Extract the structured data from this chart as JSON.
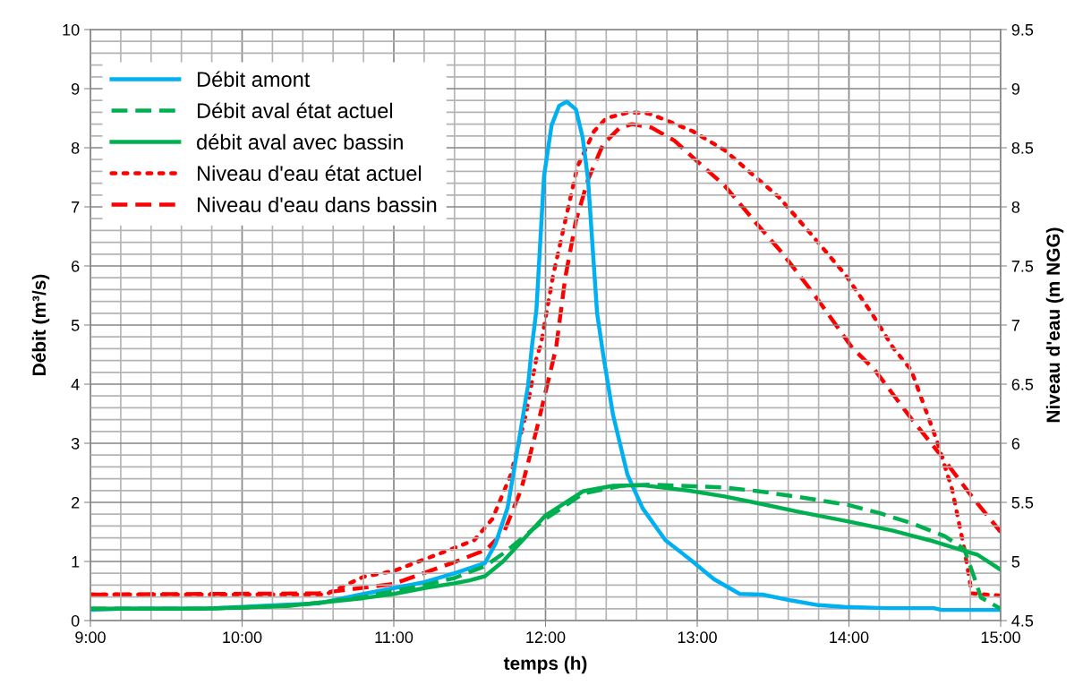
{
  "chart_data": {
    "type": "line",
    "xlabel": "temps (h)",
    "ylabel": "Débit (m³/s)",
    "y2label": "Niveau d'eau (m NGG)",
    "xlim": [
      9,
      15
    ],
    "ylim": [
      0,
      10
    ],
    "y2lim": [
      4.5,
      9.5
    ],
    "xticks": [
      {
        "value": 9,
        "label": "9:00"
      },
      {
        "value": 9.2,
        "label": null
      },
      {
        "value": 9.4,
        "label": null
      },
      {
        "value": 9.6,
        "label": null
      },
      {
        "value": 9.8,
        "label": null
      },
      {
        "value": 10,
        "label": "10:00"
      },
      {
        "value": 10.2,
        "label": null
      },
      {
        "value": 10.4,
        "label": null
      },
      {
        "value": 10.6,
        "label": null
      },
      {
        "value": 10.8,
        "label": null
      },
      {
        "value": 11,
        "label": "11:00"
      },
      {
        "value": 11.2,
        "label": null
      },
      {
        "value": 11.4,
        "label": null
      },
      {
        "value": 11.6,
        "label": null
      },
      {
        "value": 11.8,
        "label": null
      },
      {
        "value": 12,
        "label": "12:00"
      },
      {
        "value": 12.2,
        "label": null
      },
      {
        "value": 12.4,
        "label": null
      },
      {
        "value": 12.6,
        "label": null
      },
      {
        "value": 12.8,
        "label": null
      },
      {
        "value": 13,
        "label": "13:00"
      },
      {
        "value": 13.2,
        "label": null
      },
      {
        "value": 13.4,
        "label": null
      },
      {
        "value": 13.6,
        "label": null
      },
      {
        "value": 13.8,
        "label": null
      },
      {
        "value": 14,
        "label": "14:00"
      },
      {
        "value": 14.2,
        "label": null
      },
      {
        "value": 14.4,
        "label": null
      },
      {
        "value": 14.6,
        "label": null
      },
      {
        "value": 14.8,
        "label": null
      },
      {
        "value": 15,
        "label": "15:00"
      }
    ],
    "yticks": [
      0,
      {
        "value": 0.2,
        "label": null
      },
      {
        "value": 0.4,
        "label": null
      },
      {
        "value": 0.6,
        "label": null
      },
      {
        "value": 0.8,
        "label": null
      },
      1,
      {
        "value": 1.2,
        "label": null
      },
      {
        "value": 1.4,
        "label": null
      },
      {
        "value": 1.6,
        "label": null
      },
      {
        "value": 1.8,
        "label": null
      },
      2,
      {
        "value": 2.2,
        "label": null
      },
      {
        "value": 2.4,
        "label": null
      },
      {
        "value": 2.6,
        "label": null
      },
      {
        "value": 2.8,
        "label": null
      },
      3,
      {
        "value": 3.2,
        "label": null
      },
      {
        "value": 3.4,
        "label": null
      },
      {
        "value": 3.6,
        "label": null
      },
      {
        "value": 3.8,
        "label": null
      },
      4,
      {
        "value": 4.2,
        "label": null
      },
      {
        "value": 4.4,
        "label": null
      },
      {
        "value": 4.6,
        "label": null
      },
      {
        "value": 4.8,
        "label": null
      },
      5,
      {
        "value": 5.2,
        "label": null
      },
      {
        "value": 5.4,
        "label": null
      },
      {
        "value": 5.6,
        "label": null
      },
      {
        "value": 5.8,
        "label": null
      },
      6,
      {
        "value": 6.2,
        "label": null
      },
      {
        "value": 6.4,
        "label": null
      },
      {
        "value": 6.6,
        "label": null
      },
      {
        "value": 6.8,
        "label": null
      },
      7,
      {
        "value": 7.2,
        "label": null
      },
      {
        "value": 7.4,
        "label": null
      },
      {
        "value": 7.6,
        "label": null
      },
      {
        "value": 7.8,
        "label": null
      },
      8,
      {
        "value": 8.2,
        "label": null
      },
      {
        "value": 8.4,
        "label": null
      },
      {
        "value": 8.6,
        "label": null
      },
      {
        "value": 8.8,
        "label": null
      },
      9,
      {
        "value": 9.2,
        "label": null
      },
      {
        "value": 9.4,
        "label": null
      },
      {
        "value": 9.6,
        "label": null
      },
      {
        "value": 9.8,
        "label": null
      },
      10
    ],
    "y2ticks": [
      4.5,
      5,
      5.5,
      6,
      6.5,
      7,
      7.5,
      8,
      8.5,
      9,
      9.5
    ],
    "grid": true,
    "legend": "top left",
    "marker": "none",
    "series": [
      {
        "name": "Débit amont",
        "color": "#00b0f0",
        "line_style": "solid",
        "x": [
          9,
          9.2,
          9.75,
          10,
          10.3,
          10.5,
          10.8,
          11,
          11.2,
          11.4,
          11.6,
          11.67,
          11.75,
          11.81,
          11.885,
          11.91,
          11.94,
          11.99,
          12.04,
          12.09,
          12.14,
          12.2,
          12.245,
          12.28,
          12.3,
          12.34,
          12.38,
          12.445,
          12.54,
          12.64,
          12.79,
          12.96,
          13.11,
          13.28,
          13.43,
          13.62,
          13.8,
          13.97,
          14.24,
          14.56,
          14.61,
          15
        ],
        "values": [
          0.18,
          0.2,
          0.2,
          0.23,
          0.27,
          0.29,
          0.45,
          0.55,
          0.65,
          0.8,
          0.97,
          1.3,
          1.91,
          2.82,
          3.98,
          4.63,
          5.26,
          7.52,
          8.38,
          8.71,
          8.78,
          8.65,
          8.17,
          7.47,
          6.71,
          5.2,
          4.5,
          3.48,
          2.47,
          1.9,
          1.36,
          1.02,
          0.7,
          0.45,
          0.44,
          0.34,
          0.26,
          0.23,
          0.21,
          0.21,
          0.18,
          0.18
        ]
      },
      {
        "name": "Débit aval état actuel",
        "color": "#00b050",
        "line_style": "dashed",
        "x": [
          9,
          9.7,
          10,
          10.3,
          10.5,
          10.8,
          11,
          11.2,
          11.4,
          11.6,
          11.73,
          12,
          12.25,
          12.5,
          12.7,
          13,
          13.18,
          13.4,
          13.67,
          13.99,
          14.2,
          14.41,
          14.63,
          14.76,
          14.83,
          14.87,
          15
        ],
        "values": [
          0.2,
          0.2,
          0.22,
          0.25,
          0.3,
          0.4,
          0.5,
          0.6,
          0.72,
          0.92,
          1.15,
          1.72,
          2.15,
          2.28,
          2.3,
          2.27,
          2.25,
          2.19,
          2.09,
          1.96,
          1.82,
          1.65,
          1.43,
          1.21,
          0.7,
          0.39,
          0.2
        ]
      },
      {
        "name": "débit aval avec bassin",
        "color": "#00b050",
        "line_style": "solid",
        "x": [
          9,
          9.7,
          10,
          10.3,
          10.5,
          10.8,
          11,
          11.2,
          11.4,
          11.5,
          11.6,
          11.72,
          12,
          12.25,
          12.445,
          12.64,
          12.94,
          13.18,
          13.43,
          13.67,
          13.99,
          14.29,
          14.53,
          14.76,
          14.85,
          15
        ],
        "values": [
          0.2,
          0.2,
          0.22,
          0.25,
          0.3,
          0.38,
          0.45,
          0.55,
          0.63,
          0.68,
          0.75,
          1.0,
          1.78,
          2.19,
          2.28,
          2.29,
          2.2,
          2.1,
          1.97,
          1.84,
          1.68,
          1.52,
          1.36,
          1.18,
          1.11,
          0.86
        ]
      },
      {
        "name": "Niveau d'eau état actuel",
        "color": "#ff0000",
        "line_style": "dotted",
        "axis": "y2",
        "x": [
          9,
          10.55,
          10.8,
          11,
          11.35,
          11.53,
          11.65,
          11.77,
          11.87,
          11.94,
          11.97,
          12.05,
          12.13,
          12.21,
          12.32,
          12.4,
          12.55,
          12.68,
          12.8,
          12.97,
          13.18,
          13.35,
          13.54,
          13.75,
          13.98,
          14.15,
          14.29,
          14.41,
          14.58,
          14.68,
          14.76,
          14.81,
          15
        ],
        "values": [
          4.72,
          4.72,
          4.87,
          4.92,
          5.09,
          5.18,
          5.36,
          5.73,
          6.24,
          6.72,
          6.84,
          7.42,
          7.88,
          8.34,
          8.64,
          8.75,
          8.8,
          8.79,
          8.73,
          8.64,
          8.48,
          8.29,
          8.08,
          7.77,
          7.42,
          7.1,
          6.81,
          6.62,
          6.02,
          5.61,
          5.11,
          4.73,
          4.71
        ]
      },
      {
        "name": "Niveau d'eau dans bassin",
        "color": "#ff0000",
        "line_style": "dashed",
        "axis": "y2",
        "x": [
          9,
          10.5,
          11,
          11.39,
          11.61,
          11.73,
          11.84,
          11.94,
          12.07,
          12.13,
          12.2,
          12.28,
          12.38,
          12.49,
          12.57,
          12.7,
          12.85,
          12.97,
          13.18,
          13.39,
          13.56,
          13.77,
          14.02,
          14.17,
          14.41,
          14.61,
          14.81,
          15
        ],
        "values": [
          4.72,
          4.73,
          4.81,
          4.99,
          5.1,
          5.26,
          5.61,
          6.11,
          6.81,
          7.4,
          7.88,
          8.23,
          8.53,
          8.67,
          8.7,
          8.67,
          8.56,
          8.42,
          8.18,
          7.86,
          7.61,
          7.26,
          6.81,
          6.62,
          6.21,
          5.89,
          5.55,
          5.25
        ]
      }
    ]
  }
}
